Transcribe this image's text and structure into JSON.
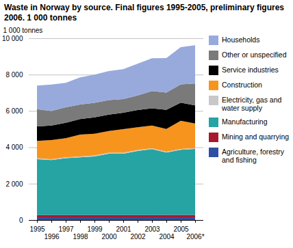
{
  "chart_data": {
    "type": "area",
    "stacked": true,
    "grid": true,
    "title": "Waste in Norway by source. Final figures 1995-2005, preliminary figures 2006. 1 000 tonnes",
    "y_label": "1 000 tonnes",
    "categories": [
      "1995",
      "1996",
      "1997",
      "1998",
      "1999",
      "2000",
      "2001",
      "2002",
      "2003",
      "2004",
      "2005",
      "2006*"
    ],
    "ylim": [
      0,
      10000
    ],
    "yticks": [
      0,
      {
        "value": 2000,
        "label": "2 000"
      },
      {
        "value": 4000,
        "label": "4 000"
      },
      {
        "value": 6000,
        "label": "6 000"
      },
      {
        "value": 8000,
        "label": "8 000"
      },
      {
        "value": 10000,
        "label": "10 000"
      }
    ],
    "legend": "right",
    "series": [
      {
        "name": "Households",
        "color": "#98aadc",
        "values": [
          1300,
          1450,
          1350,
          1500,
          1550,
          1600,
          1650,
          1750,
          1800,
          1900,
          2050,
          2100
        ]
      },
      {
        "name": "Other or unspecified",
        "color": "#7a7a7a",
        "values": [
          950,
          800,
          850,
          800,
          800,
          800,
          750,
          800,
          950,
          950,
          1000,
          1200
        ]
      },
      {
        "name": "Service industries",
        "color": "#000000",
        "values": [
          800,
          800,
          850,
          850,
          900,
          900,
          900,
          950,
          950,
          1050,
          1000,
          1000
        ]
      },
      {
        "name": "Construction",
        "color": "#f7941d",
        "values": [
          950,
          1050,
          1050,
          1200,
          1200,
          1200,
          1300,
          1250,
          1250,
          1250,
          1550,
          1350
        ]
      },
      {
        "name": "Electricity, gas and water supply",
        "color": "#c8c8c8",
        "values": [
          50,
          50,
          50,
          50,
          50,
          50,
          50,
          50,
          50,
          50,
          50,
          50
        ]
      },
      {
        "name": "Manufacturing",
        "color": "#26a3a3",
        "values": [
          3080,
          3030,
          3130,
          3180,
          3230,
          3380,
          3380,
          3530,
          3630,
          3430,
          3580,
          3630
        ]
      },
      {
        "name": "Mining and quarrying",
        "color": "#a6192e",
        "values": [
          120,
          120,
          120,
          120,
          120,
          120,
          120,
          120,
          120,
          130,
          130,
          130
        ]
      },
      {
        "name": "Agriculture, forestry and fishing",
        "color": "#2f4fa5",
        "values": [
          150,
          150,
          150,
          150,
          150,
          150,
          150,
          150,
          150,
          150,
          150,
          150
        ]
      }
    ]
  }
}
